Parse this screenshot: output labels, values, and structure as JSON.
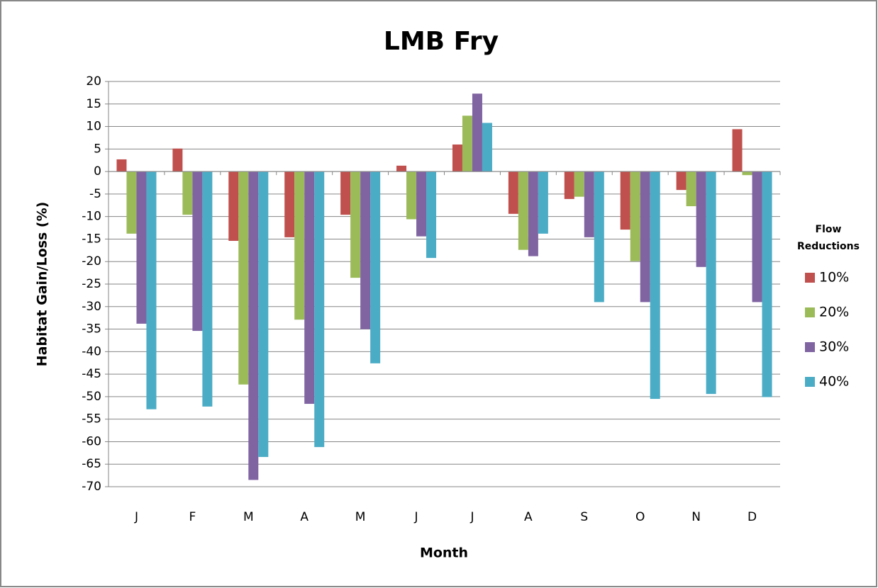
{
  "chart_data": {
    "type": "bar",
    "title": "LMB Fry",
    "x_label": "Month",
    "y_label": "Habitat Gain/Loss (%)",
    "categories": [
      "J",
      "F",
      "M",
      "A",
      "M",
      "J",
      "J",
      "A",
      "S",
      "O",
      "N",
      "D"
    ],
    "legend_title": "Flow Reductions",
    "legend": "right",
    "grid": true,
    "ylim": [
      -70,
      20
    ],
    "yticks": [
      -70,
      -65,
      -60,
      -55,
      -50,
      -45,
      -40,
      -35,
      -30,
      -25,
      -20,
      -15,
      -10,
      -5,
      0,
      5,
      10,
      15,
      20
    ],
    "series": [
      {
        "name": "10%",
        "color": "#c0504d",
        "values": [
          2.7,
          5.1,
          -15.4,
          -14.6,
          -9.6,
          1.3,
          6.0,
          -9.4,
          -6.1,
          -12.9,
          -4.1,
          9.4
        ]
      },
      {
        "name": "20%",
        "color": "#9bbb59",
        "values": [
          -13.8,
          -9.6,
          -47.3,
          -32.9,
          -23.6,
          -10.6,
          12.4,
          -17.4,
          -5.6,
          -19.9,
          -7.7,
          -0.8
        ]
      },
      {
        "name": "30%",
        "color": "#8064a2",
        "values": [
          -33.8,
          -35.4,
          -68.5,
          -51.6,
          -35.0,
          -14.4,
          17.3,
          -18.8,
          -14.6,
          -29.0,
          -21.2,
          -29.0
        ]
      },
      {
        "name": "40%",
        "color": "#4bacc6",
        "values": [
          -52.8,
          -52.2,
          -63.4,
          -61.2,
          -42.6,
          -19.2,
          10.8,
          -13.8,
          -29.0,
          -50.5,
          -49.4,
          -50.1
        ]
      }
    ]
  }
}
